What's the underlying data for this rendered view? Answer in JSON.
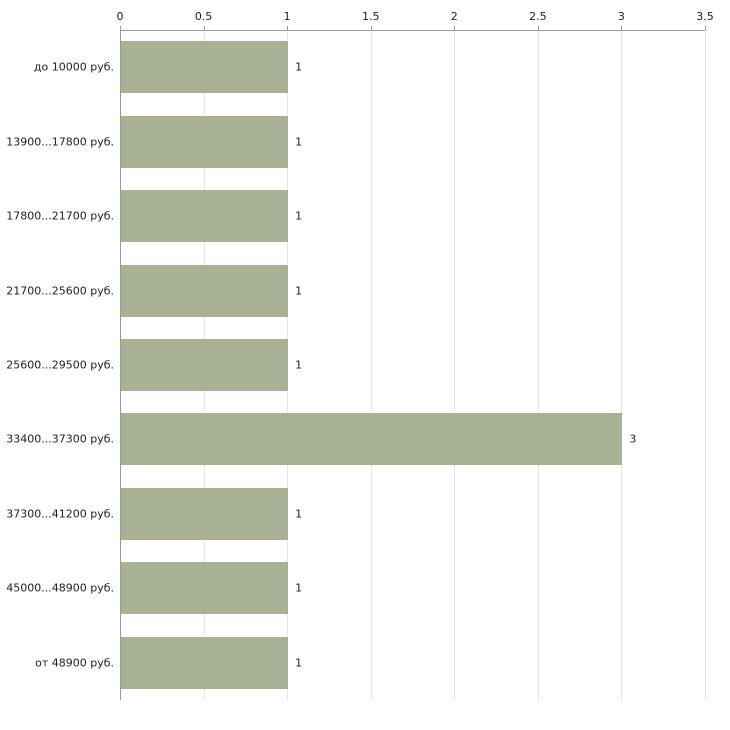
{
  "chart_data": {
    "type": "bar",
    "orientation": "horizontal",
    "title": "",
    "xlabel": "",
    "ylabel": "",
    "categories": [
      "до 10000 руб.",
      "13900...17800 руб.",
      "17800...21700 руб.",
      "21700...25600 руб.",
      "25600...29500 руб.",
      "33400...37300 руб.",
      "37300...41200 руб.",
      "45000...48900 руб.",
      "от 48900 руб."
    ],
    "values": [
      1,
      1,
      1,
      1,
      1,
      3,
      1,
      1,
      1
    ],
    "value_labels": [
      "1",
      "1",
      "1",
      "1",
      "1",
      "3",
      "1",
      "1",
      "1"
    ],
    "xlim": [
      0,
      3.5
    ],
    "xticks": [
      0,
      0.5,
      1,
      1.5,
      2,
      2.5,
      3,
      3.5
    ],
    "xtick_labels": [
      "0",
      "0.5",
      "1",
      "1.5",
      "2",
      "2.5",
      "3",
      "3.5"
    ],
    "grid": true,
    "legend": false,
    "bar_color": "#a9b195",
    "axis_color": "#9a9a9a",
    "grid_color": "#e4e4e4",
    "text_color": "#222222"
  }
}
